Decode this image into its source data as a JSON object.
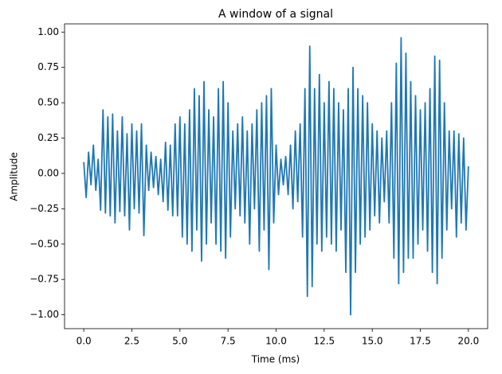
{
  "chart_data": {
    "type": "line",
    "title": "A window of a signal",
    "x_label": "Time (ms)",
    "y_label": "Amplitude",
    "x": [
      0,
      0.125,
      0.25,
      0.375,
      0.5,
      0.625,
      0.75,
      0.875,
      1,
      1.125,
      1.25,
      1.375,
      1.5,
      1.625,
      1.75,
      1.875,
      2,
      2.125,
      2.25,
      2.375,
      2.5,
      2.625,
      2.75,
      2.875,
      3,
      3.125,
      3.25,
      3.375,
      3.5,
      3.625,
      3.75,
      3.875,
      4,
      4.125,
      4.25,
      4.375,
      4.5,
      4.625,
      4.75,
      4.875,
      5,
      5.125,
      5.25,
      5.375,
      5.5,
      5.625,
      5.75,
      5.875,
      6,
      6.125,
      6.25,
      6.375,
      6.5,
      6.625,
      6.75,
      6.875,
      7,
      7.125,
      7.25,
      7.375,
      7.5,
      7.625,
      7.75,
      7.875,
      8,
      8.125,
      8.25,
      8.375,
      8.5,
      8.625,
      8.75,
      8.875,
      9,
      9.125,
      9.25,
      9.375,
      9.5,
      9.625,
      9.75,
      9.875,
      10,
      10.125,
      10.25,
      10.375,
      10.5,
      10.625,
      10.75,
      10.875,
      11,
      11.125,
      11.25,
      11.375,
      11.5,
      11.625,
      11.75,
      11.875,
      12,
      12.125,
      12.25,
      12.375,
      12.5,
      12.625,
      12.75,
      12.875,
      13,
      13.125,
      13.25,
      13.375,
      13.5,
      13.625,
      13.75,
      13.875,
      14,
      14.125,
      14.25,
      14.375,
      14.5,
      14.625,
      14.75,
      14.875,
      15,
      15.125,
      15.25,
      15.375,
      15.5,
      15.625,
      15.75,
      15.875,
      16,
      16.125,
      16.25,
      16.375,
      16.5,
      16.625,
      16.75,
      16.875,
      17,
      17.125,
      17.25,
      17.375,
      17.5,
      17.625,
      17.75,
      17.875,
      18,
      18.125,
      18.25,
      18.375,
      18.5,
      18.625,
      18.75,
      18.875,
      19,
      19.125,
      19.25,
      19.375,
      19.5,
      19.625,
      19.75,
      19.875,
      20
    ],
    "series": [
      {
        "color": "#1f77b4",
        "values": [
          0.08,
          -0.17,
          0.15,
          -0.08,
          0.2,
          -0.12,
          0.1,
          -0.26,
          0.45,
          -0.28,
          0.4,
          -0.3,
          0.42,
          -0.35,
          0.3,
          -0.27,
          0.4,
          -0.3,
          0.28,
          -0.4,
          0.35,
          -0.25,
          0.3,
          -0.28,
          0.35,
          -0.44,
          0.2,
          -0.12,
          0.15,
          -0.1,
          0.12,
          -0.15,
          0.1,
          -0.2,
          0.22,
          -0.26,
          0.2,
          -0.3,
          0.35,
          -0.3,
          0.4,
          -0.45,
          0.35,
          -0.5,
          0.45,
          -0.55,
          0.6,
          -0.4,
          0.55,
          -0.62,
          0.65,
          -0.5,
          0.45,
          -0.35,
          0.4,
          -0.5,
          0.6,
          -0.55,
          0.65,
          -0.6,
          0.5,
          -0.45,
          0.3,
          -0.25,
          0.35,
          -0.3,
          0.4,
          -0.35,
          0.3,
          -0.5,
          0.35,
          -0.25,
          0.45,
          -0.55,
          0.5,
          -0.4,
          0.55,
          -0.68,
          0.6,
          -0.35,
          0.2,
          -0.15,
          0.1,
          -0.08,
          0.12,
          -0.15,
          0.2,
          -0.25,
          0.3,
          -0.2,
          0.35,
          -0.45,
          0.6,
          -0.87,
          0.9,
          -0.8,
          0.6,
          -0.5,
          0.7,
          -0.55,
          0.5,
          -0.45,
          0.65,
          -0.5,
          0.6,
          -0.55,
          0.5,
          -0.4,
          0.45,
          -0.7,
          0.6,
          -1.0,
          0.75,
          -0.7,
          0.6,
          -0.5,
          0.55,
          -0.45,
          0.5,
          -0.4,
          0.35,
          -0.3,
          0.3,
          -0.35,
          0.25,
          -0.2,
          0.3,
          -0.35,
          0.5,
          -0.6,
          0.78,
          -0.78,
          0.96,
          -0.7,
          0.85,
          -0.6,
          0.65,
          -0.6,
          0.55,
          -0.5,
          0.45,
          -0.4,
          0.5,
          -0.55,
          0.6,
          -0.7,
          0.83,
          -0.78,
          0.8,
          -0.6,
          0.5,
          -0.4,
          0.3,
          -0.25,
          0.3,
          -0.45,
          0.28,
          -0.35,
          0.25,
          -0.4,
          0.05
        ]
      }
    ],
    "xlim": [
      -1,
      21
    ],
    "xticks": [
      {
        "value": 0,
        "label": "0.0"
      },
      {
        "value": 2.5,
        "label": "2.5"
      },
      {
        "value": 5,
        "label": "5.0"
      },
      {
        "value": 7.5,
        "label": "7.5"
      },
      {
        "value": 10,
        "label": "10.0"
      },
      {
        "value": 12.5,
        "label": "12.5"
      },
      {
        "value": 15,
        "label": "15.0"
      },
      {
        "value": 17.5,
        "label": "17.5"
      },
      {
        "value": 20,
        "label": "20.0"
      }
    ],
    "ylim": [
      -1.098,
      1.058
    ],
    "yticks": [
      {
        "value": -1,
        "label": "−1.00"
      },
      {
        "value": -0.75,
        "label": "−0.75"
      },
      {
        "value": -0.5,
        "label": "−0.50"
      },
      {
        "value": -0.25,
        "label": "−0.25"
      },
      {
        "value": 0,
        "label": "0.00"
      },
      {
        "value": 0.25,
        "label": "0.25"
      },
      {
        "value": 0.5,
        "label": "0.50"
      },
      {
        "value": 0.75,
        "label": "0.75"
      },
      {
        "value": 1,
        "label": "1.00"
      }
    ]
  }
}
